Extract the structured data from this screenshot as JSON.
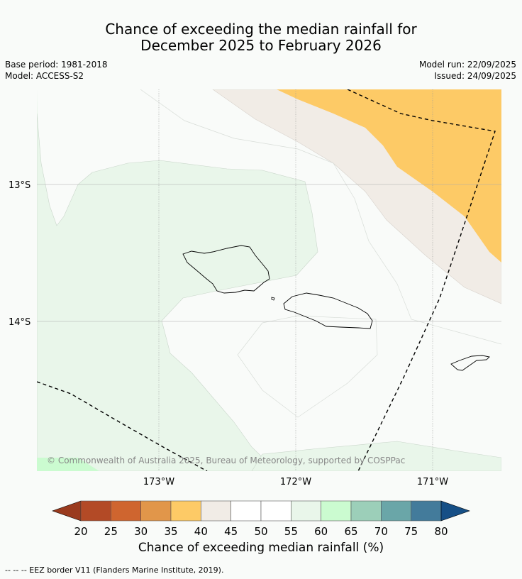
{
  "title": {
    "line1": "Chance of exceeding the median rainfall for",
    "line2": "December 2025 to February 2026"
  },
  "meta": {
    "base_period": "Base period: 1981-2018",
    "model": "Model: ACCESS-S2",
    "model_run": "Model run: 22/09/2025",
    "issued": "Issued: 24/09/2025"
  },
  "map": {
    "lat_labels": [
      "13°S",
      "14°S"
    ],
    "lon_labels": [
      "173°W",
      "172°W",
      "171°W"
    ],
    "copyright": "© Commonwealth of Australia 2025, Bureau of Meteorology, supported by COSPPac"
  },
  "colorbar": {
    "ticks": [
      "20",
      "25",
      "30",
      "35",
      "40",
      "45",
      "50",
      "55",
      "60",
      "65",
      "70",
      "75",
      "80"
    ],
    "colors": [
      "#b34a26",
      "#cf652f",
      "#e1964a",
      "#fdca66",
      "#f1ece6",
      "#ffffff",
      "#ffffff",
      "#e9f6ea",
      "#cbfbd0",
      "#9ccfb9",
      "#6aa6a8",
      "#437b9b"
    ],
    "under_color": "#9a3a1e",
    "over_color": "#164f86",
    "label": "Chance of exceeding median rainfall (%)"
  },
  "colors": {
    "orange": "#fdca66",
    "beige": "#f1ece6",
    "light_green": "#e9f6ea",
    "mint": "#cbfbd0",
    "background": "#f9fbf9"
  },
  "footer": "-- -- -- EEZ border V11 (Flanders Marine Institute, 2019)."
}
